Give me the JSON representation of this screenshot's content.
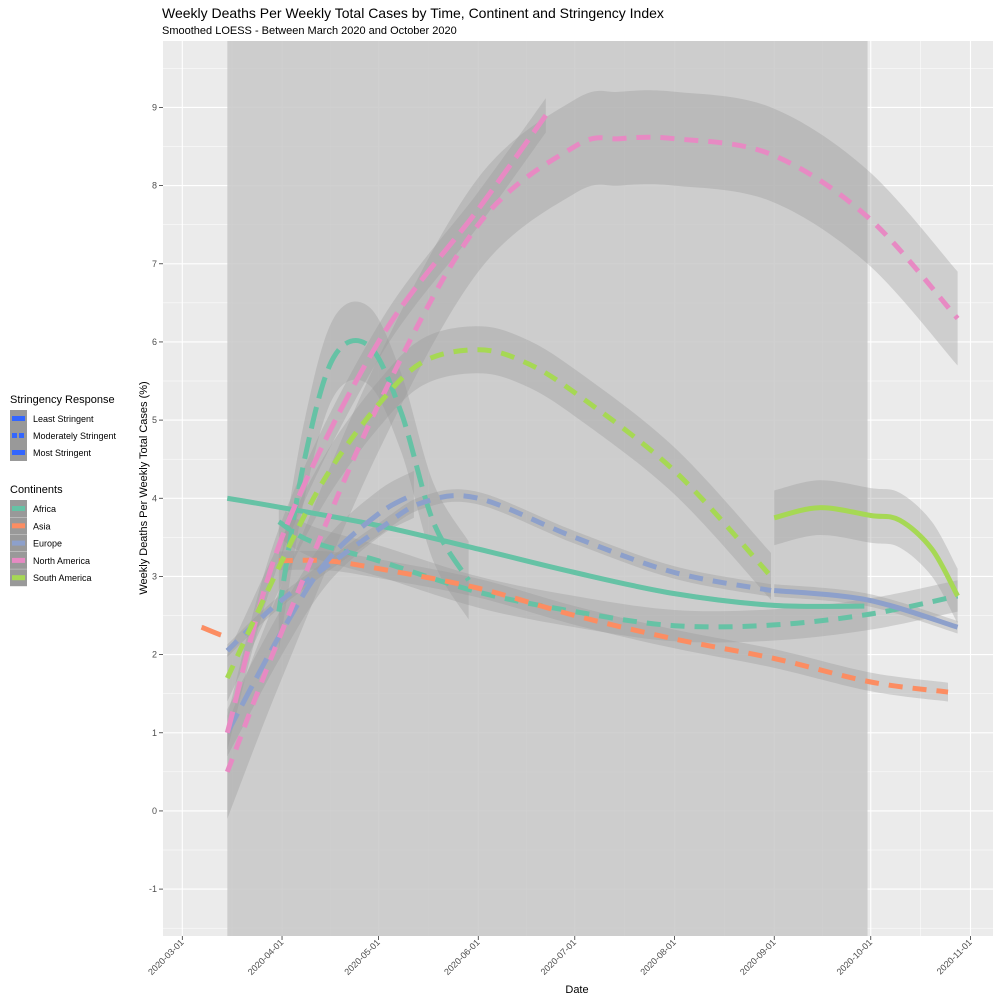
{
  "chart_data": {
    "type": "line",
    "title": "Weekly Deaths Per Weekly Total Cases by Time, Continent and Stringency Index",
    "subtitle": "Smoothed LOESS - Between March 2020 and October 2020",
    "xlabel": "Date",
    "ylabel": "Weekly Deaths Per Weekly Total Cases (%)",
    "x_ticks": [
      "2020-03-01",
      "2020-04-01",
      "2020-05-01",
      "2020-06-01",
      "2020-07-01",
      "2020-08-01",
      "2020-09-01",
      "2020-10-01",
      "2020-11-01"
    ],
    "y_ticks": [
      "-1",
      "0",
      "1",
      "2",
      "3",
      "4",
      "5",
      "6",
      "7",
      "8",
      "9"
    ],
    "xlim": [
      "2020-02-24",
      "2020-11-08"
    ],
    "ylim": [
      -1.6,
      9.85
    ],
    "shaded_period": [
      "2020-03-15",
      "2020-09-30"
    ],
    "grid": true,
    "legend_position": "left",
    "colors": {
      "Africa": "#66c2a5",
      "Asia": "#fc8d62",
      "Europe": "#8da0cb",
      "North America": "#e78ac3",
      "South America": "#a6d854",
      "stringency_key": "#3366ff",
      "panel_bg": "#ebebeb",
      "shaded_rect": "#c8c8c8",
      "ribbon": "#999999"
    },
    "legends": {
      "stringency": {
        "title": "Stringency Response",
        "items": [
          {
            "label": "Least Stringent",
            "linetype": "solid"
          },
          {
            "label": "Moderately Stringent",
            "linetype": "dashed"
          },
          {
            "label": "Most Stringent",
            "linetype": "solid"
          }
        ]
      },
      "continents": {
        "title": "Continents",
        "items": [
          "Africa",
          "Asia",
          "Europe",
          "North America",
          "South America"
        ]
      }
    },
    "series": [
      {
        "name": "Africa",
        "stringency": "Least Stringent",
        "x": [
          "2020-03-15",
          "2020-04-01",
          "2020-05-01",
          "2020-06-01",
          "2020-07-01",
          "2020-08-01",
          "2020-09-01",
          "2020-09-29"
        ],
        "y": [
          4.0,
          3.88,
          3.65,
          3.35,
          3.05,
          2.78,
          2.63,
          2.62
        ],
        "se": 0.03
      },
      {
        "name": "Africa",
        "stringency": "Moderately Stringent",
        "x": [
          "2020-03-31",
          "2020-04-10",
          "2020-05-01",
          "2020-06-01",
          "2020-07-01",
          "2020-08-01",
          "2020-09-01",
          "2020-10-01",
          "2020-10-28"
        ],
        "y": [
          3.7,
          3.45,
          3.2,
          2.8,
          2.55,
          2.37,
          2.38,
          2.52,
          2.75
        ],
        "se": 0.2
      },
      {
        "name": "Africa",
        "stringency": "Most Stringent",
        "x": [
          "2020-03-31",
          "2020-04-08",
          "2020-04-17",
          "2020-04-28",
          "2020-05-08",
          "2020-05-18",
          "2020-05-29"
        ],
        "y": [
          2.55,
          4.5,
          5.8,
          5.95,
          5.1,
          3.7,
          2.95
        ],
        "se": 0.5
      },
      {
        "name": "Asia",
        "stringency": "Least Stringent",
        "x": [
          "2020-03-07",
          "2020-03-13"
        ],
        "y": [
          2.35,
          2.25
        ],
        "se": 0.03
      },
      {
        "name": "Asia",
        "stringency": "Moderately Stringent",
        "x": [
          "2020-03-31",
          "2020-04-15",
          "2020-05-01",
          "2020-06-01",
          "2020-07-01",
          "2020-08-01",
          "2020-09-01",
          "2020-10-01",
          "2020-10-25"
        ],
        "y": [
          3.2,
          3.2,
          3.1,
          2.85,
          2.5,
          2.2,
          1.95,
          1.65,
          1.52
        ],
        "se": 0.12
      },
      {
        "name": "Europe",
        "stringency": "Moderately Stringent",
        "x": [
          "2020-03-15",
          "2020-04-01",
          "2020-05-01",
          "2020-05-15",
          "2020-06-01",
          "2020-07-01",
          "2020-08-01",
          "2020-08-31"
        ],
        "y": [
          2.05,
          2.7,
          3.6,
          3.95,
          4.0,
          3.5,
          3.05,
          2.82
        ],
        "se": 0.08
      },
      {
        "name": "Europe",
        "stringency": "Least Stringent",
        "x": [
          "2020-09-01",
          "2020-09-30",
          "2020-10-28"
        ],
        "y": [
          2.82,
          2.7,
          2.35
        ],
        "se": 0.08
      },
      {
        "name": "Europe",
        "stringency": "Most Stringent",
        "x": [
          "2020-03-15",
          "2020-04-01",
          "2020-04-15",
          "2020-05-01",
          "2020-05-12"
        ],
        "y": [
          1.0,
          2.3,
          3.2,
          3.8,
          4.05
        ],
        "se": 0.3
      },
      {
        "name": "North America",
        "stringency": "Moderately Stringent",
        "x": [
          "2020-03-15",
          "2020-04-01",
          "2020-05-01",
          "2020-06-01",
          "2020-07-01",
          "2020-07-15",
          "2020-08-01",
          "2020-08-31",
          "2020-09-30",
          "2020-10-28"
        ],
        "y": [
          0.5,
          2.3,
          5.2,
          7.5,
          8.5,
          8.6,
          8.6,
          8.4,
          7.6,
          6.3
        ],
        "se": 0.6
      },
      {
        "name": "North America",
        "stringency": "Most Stringent",
        "x": [
          "2020-03-15",
          "2020-04-01",
          "2020-05-01",
          "2020-06-01",
          "2020-06-22"
        ],
        "y": [
          1.0,
          3.5,
          6.0,
          7.7,
          8.9
        ],
        "se": 0.22
      },
      {
        "name": "South America",
        "stringency": "Moderately Stringent",
        "x": [
          "2020-03-15",
          "2020-04-01",
          "2020-04-15",
          "2020-05-01",
          "2020-05-15",
          "2020-06-01",
          "2020-06-15",
          "2020-07-01",
          "2020-08-01",
          "2020-08-31"
        ],
        "y": [
          1.7,
          3.2,
          4.3,
          5.2,
          5.75,
          5.9,
          5.75,
          5.35,
          4.35,
          3.0
        ],
        "se": 0.3
      },
      {
        "name": "South America",
        "stringency": "Least Stringent",
        "x": [
          "2020-09-01",
          "2020-09-15",
          "2020-10-01",
          "2020-10-10",
          "2020-10-20",
          "2020-10-28"
        ],
        "y": [
          3.75,
          3.88,
          3.78,
          3.72,
          3.35,
          2.75
        ],
        "se": 0.35
      }
    ]
  }
}
